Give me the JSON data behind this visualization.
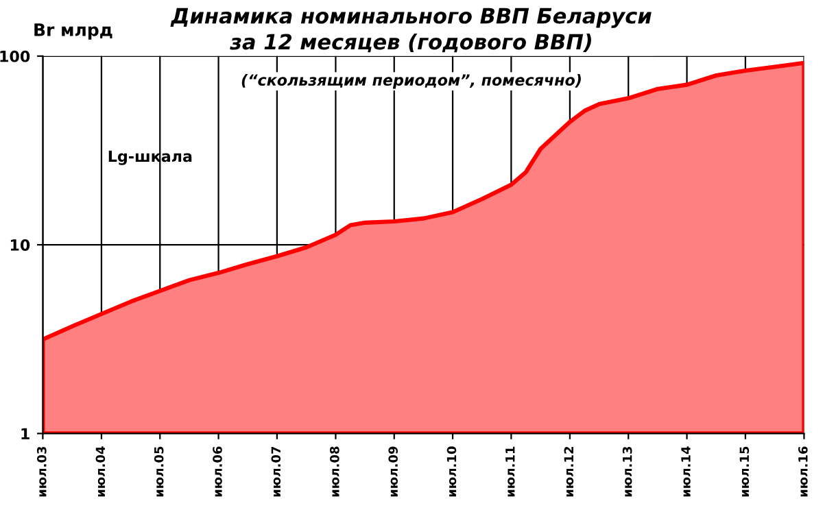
{
  "chart_data": {
    "type": "area",
    "title": "Динамика номинального ВВП Беларуси\nза 12 месяцев (годового ВВП)",
    "subtitle": "(“скользящим периодом”, помесячно)",
    "ylabel": "Br млрд",
    "annotations": [
      "Lg-шкала"
    ],
    "x": [
      "2003-07",
      "2004-01",
      "2004-07",
      "2005-01",
      "2005-07",
      "2006-01",
      "2006-07",
      "2007-01",
      "2007-07",
      "2008-01",
      "2008-07",
      "2008-10",
      "2009-01",
      "2009-07",
      "2010-01",
      "2010-07",
      "2011-01",
      "2011-07",
      "2011-10",
      "2012-01",
      "2012-07",
      "2012-10",
      "2013-01",
      "2013-07",
      "2014-01",
      "2014-07",
      "2015-01",
      "2015-07",
      "2016-01",
      "2016-07"
    ],
    "series": [
      {
        "color": "#ff0000",
        "values": [
          3.15,
          3.7,
          4.3,
          5.0,
          5.7,
          6.5,
          7.1,
          7.9,
          8.7,
          9.7,
          11.3,
          12.7,
          13.1,
          13.3,
          13.8,
          14.9,
          17.5,
          20.8,
          24.3,
          32.3,
          44.8,
          51.3,
          55.7,
          59.8,
          67,
          70.5,
          79,
          83.8,
          87.7,
          92
        ]
      }
    ],
    "log": "y",
    "ylim": [
      1,
      100
    ],
    "yticks": [
      1,
      10,
      100
    ],
    "xlim": [
      "2003-07",
      "2016-07"
    ],
    "xticks": [
      {
        "value": "2003-07",
        "label": "июл.03"
      },
      {
        "value": "2004-07",
        "label": "июл.04"
      },
      {
        "value": "2005-07",
        "label": "июл.05"
      },
      {
        "value": "2006-07",
        "label": "июл.06"
      },
      {
        "value": "2007-07",
        "label": "июл.07"
      },
      {
        "value": "2008-07",
        "label": "июл.08"
      },
      {
        "value": "2009-07",
        "label": "июл.09"
      },
      {
        "value": "2010-07",
        "label": "июл.10"
      },
      {
        "value": "2011-07",
        "label": "июл.11"
      },
      {
        "value": "2012-07",
        "label": "июл.12"
      },
      {
        "value": "2013-07",
        "label": "июл.13"
      },
      {
        "value": "2014-07",
        "label": "июл.14"
      },
      {
        "value": "2015-07",
        "label": "июл.15"
      },
      {
        "value": "2016-07",
        "label": "июл.16"
      }
    ],
    "grid": true,
    "legend": false
  }
}
